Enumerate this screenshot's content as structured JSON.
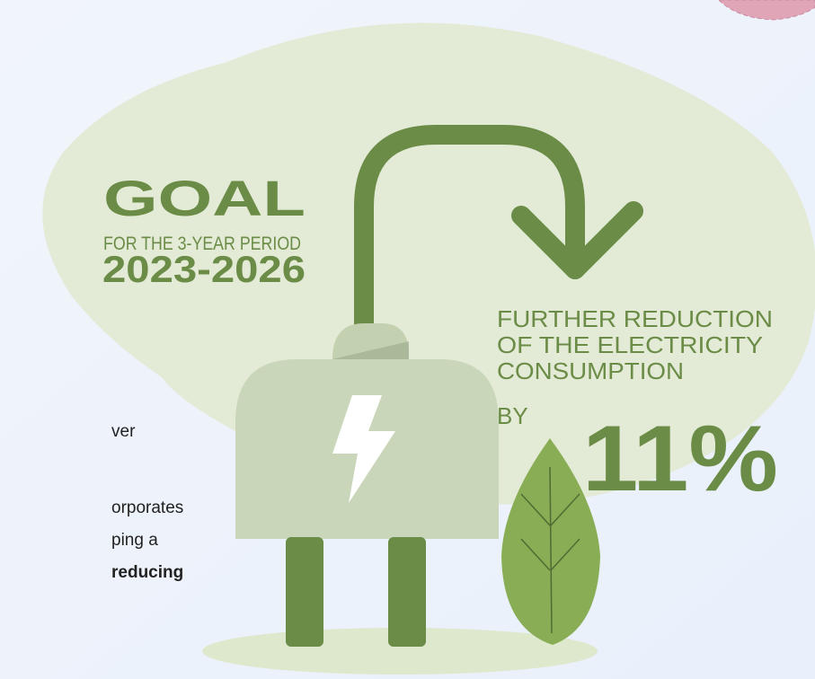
{
  "goal": {
    "title": "GOAL",
    "subtitle": "FOR THE 3-YEAR PERIOD",
    "period": "2023-2026"
  },
  "target": {
    "lines": [
      "FURTHER REDUCTION",
      "OF THE ELECTRICITY",
      "CONSUMPTION"
    ],
    "by": "BY",
    "value": "11%"
  },
  "body_text": [
    {
      "text": "ver",
      "bold": false
    },
    {
      "text": "orporates",
      "bold": false
    },
    {
      "text": "ping a",
      "bold": false
    },
    {
      "text": "reducing",
      "bold": true
    }
  ]
}
